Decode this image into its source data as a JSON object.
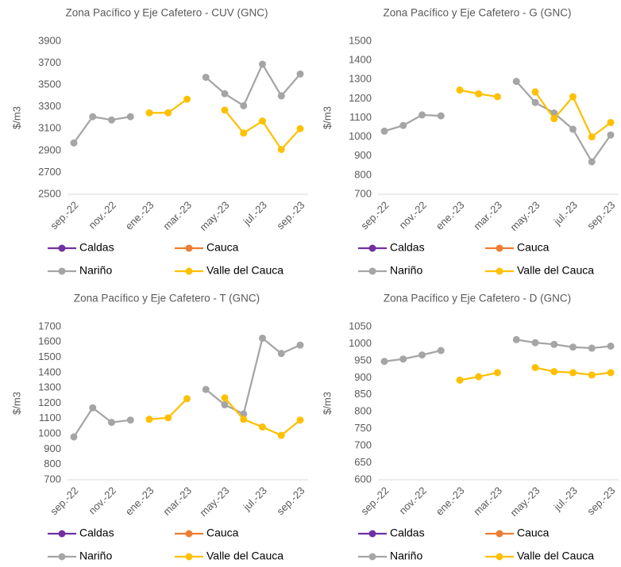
{
  "chart_data": [
    {
      "type": "line",
      "title": "Zona Pacífico y Eje Cafetero  - CUV (GNC)",
      "y_label": "$/m3",
      "categories": [
        "sep.-22",
        null,
        "nov.-22",
        null,
        "ene.-23",
        null,
        "mar.-23",
        null,
        "may.-23",
        null,
        "jul.-23",
        null,
        "sep.-23"
      ],
      "ylim": [
        2500,
        3900
      ],
      "yticks": [
        2500,
        2700,
        2900,
        3100,
        3300,
        3500,
        3700,
        3900
      ],
      "series": [
        {
          "name": "Caldas",
          "color": "#7030a0",
          "values": [
            null,
            null,
            null,
            null,
            null,
            null,
            null,
            null,
            null,
            null,
            null,
            null,
            null
          ]
        },
        {
          "name": "Cauca",
          "color": "#ed7d31",
          "values": [
            null,
            null,
            null,
            null,
            null,
            null,
            null,
            null,
            null,
            null,
            null,
            null,
            null
          ]
        },
        {
          "name": "Nariño",
          "color": "#a5a5a5",
          "values": [
            2970,
            3210,
            3180,
            3210,
            null,
            null,
            null,
            3570,
            3420,
            3310,
            3690,
            3400,
            3600
          ]
        },
        {
          "name": "Valle del Cauca",
          "color": "#ffc000",
          "values": [
            null,
            null,
            null,
            null,
            3245,
            3245,
            3370,
            null,
            3270,
            3060,
            3170,
            2910,
            3100
          ]
        }
      ]
    },
    {
      "type": "line",
      "title": "Zona Pacífico y Eje Cafetero  - G (GNC)",
      "y_label": "$/m3",
      "categories": [
        "sep.-22",
        null,
        "nov.-22",
        null,
        "ene.-23",
        null,
        "mar.-23",
        null,
        "may.-23",
        null,
        "jul.-23",
        null,
        "sep.-23"
      ],
      "ylim": [
        700,
        1500
      ],
      "yticks": [
        700,
        800,
        900,
        1000,
        1100,
        1200,
        1300,
        1400,
        1500
      ],
      "series": [
        {
          "name": "Caldas",
          "color": "#7030a0",
          "values": [
            null,
            null,
            null,
            null,
            null,
            null,
            null,
            null,
            null,
            null,
            null,
            null,
            null
          ]
        },
        {
          "name": "Cauca",
          "color": "#ed7d31",
          "values": [
            null,
            null,
            null,
            null,
            null,
            null,
            null,
            null,
            null,
            null,
            null,
            null,
            null
          ]
        },
        {
          "name": "Nariño",
          "color": "#a5a5a5",
          "values": [
            1030,
            1060,
            1115,
            1110,
            null,
            null,
            null,
            1290,
            1180,
            1125,
            1040,
            870,
            1010
          ]
        },
        {
          "name": "Valle del Cauca",
          "color": "#ffc000",
          "values": [
            null,
            null,
            null,
            null,
            1245,
            1225,
            1210,
            null,
            1235,
            1095,
            1210,
            1000,
            1075
          ]
        }
      ]
    },
    {
      "type": "line",
      "title": "Zona Pacífico y Eje Cafetero  - T (GNC)",
      "y_label": "$/m3",
      "categories": [
        "sep.-22",
        null,
        "nov.-22",
        null,
        "ene.-23",
        null,
        "mar.-23",
        null,
        "may.-23",
        null,
        "jul.-23",
        null,
        "sep.-23"
      ],
      "ylim": [
        700,
        1700
      ],
      "yticks": [
        700,
        800,
        900,
        1000,
        1100,
        1200,
        1300,
        1400,
        1500,
        1600,
        1700
      ],
      "series": [
        {
          "name": "Caldas",
          "color": "#7030a0",
          "values": [
            null,
            null,
            null,
            null,
            null,
            null,
            null,
            null,
            null,
            null,
            null,
            null,
            null
          ]
        },
        {
          "name": "Cauca",
          "color": "#ed7d31",
          "values": [
            null,
            null,
            null,
            null,
            null,
            null,
            null,
            null,
            null,
            null,
            null,
            null,
            null
          ]
        },
        {
          "name": "Nariño",
          "color": "#a5a5a5",
          "values": [
            980,
            1170,
            1075,
            1090,
            null,
            null,
            null,
            1290,
            1190,
            1130,
            1625,
            1525,
            1580
          ]
        },
        {
          "name": "Valle del Cauca",
          "color": "#ffc000",
          "values": [
            null,
            null,
            null,
            null,
            1095,
            1105,
            1230,
            null,
            1235,
            1095,
            1045,
            990,
            1090
          ]
        }
      ]
    },
    {
      "type": "line",
      "title": "Zona Pacífico y Eje Cafetero  - D (GNC)",
      "y_label": "$/m3",
      "categories": [
        "sep.-22",
        null,
        "nov.-22",
        null,
        "ene.-23",
        null,
        "mar.-23",
        null,
        "may.-23",
        null,
        "jul.-23",
        null,
        "sep.-23"
      ],
      "ylim": [
        600,
        1050
      ],
      "yticks": [
        600,
        650,
        700,
        750,
        800,
        850,
        900,
        950,
        1000,
        1050
      ],
      "series": [
        {
          "name": "Caldas",
          "color": "#7030a0",
          "values": [
            null,
            null,
            null,
            null,
            null,
            null,
            null,
            null,
            null,
            null,
            null,
            null,
            null
          ]
        },
        {
          "name": "Cauca",
          "color": "#ed7d31",
          "values": [
            null,
            null,
            null,
            null,
            null,
            null,
            null,
            null,
            null,
            null,
            null,
            null,
            null
          ]
        },
        {
          "name": "Nariño",
          "color": "#a5a5a5",
          "values": [
            948,
            955,
            967,
            980,
            null,
            null,
            null,
            1012,
            1003,
            998,
            990,
            987,
            993
          ]
        },
        {
          "name": "Valle del Cauca",
          "color": "#ffc000",
          "values": [
            null,
            null,
            null,
            null,
            893,
            903,
            915,
            null,
            930,
            918,
            915,
            908,
            915
          ]
        }
      ]
    }
  ]
}
